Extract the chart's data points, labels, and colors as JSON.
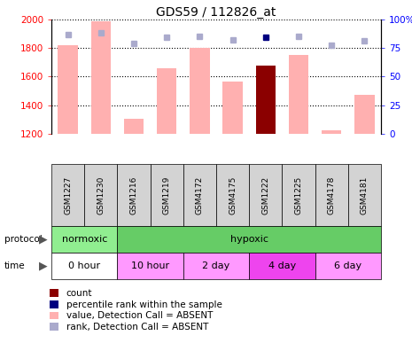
{
  "title": "GDS59 / 112826_at",
  "samples": [
    "GSM1227",
    "GSM1230",
    "GSM1216",
    "GSM1219",
    "GSM4172",
    "GSM4175",
    "GSM1222",
    "GSM1225",
    "GSM4178",
    "GSM4181"
  ],
  "values_absent": [
    1820,
    1990,
    1305,
    1660,
    1800,
    1565,
    null,
    1755,
    1225,
    1475
  ],
  "ranks_absent": [
    87.0,
    88.0,
    78.8,
    84.4,
    85.3,
    81.9,
    null,
    85.0,
    77.5,
    81.3
  ],
  "count_value": [
    null,
    null,
    null,
    null,
    null,
    null,
    1675,
    null,
    null,
    null
  ],
  "rank_present": [
    null,
    null,
    null,
    null,
    null,
    null,
    84.8,
    null,
    null,
    null
  ],
  "ylim": [
    1200,
    2000
  ],
  "y2lim": [
    0,
    100
  ],
  "yticks": [
    1200,
    1400,
    1600,
    1800,
    2000
  ],
  "y2ticks": [
    0,
    25,
    50,
    75,
    100
  ],
  "bar_absent_color": "#FFB0B0",
  "bar_count_color": "#8B0000",
  "rank_absent_color": "#AAAACC",
  "rank_present_color": "#000080",
  "sample_box_color": "#D3D3D3",
  "protocol_groups": [
    {
      "label": "normoxic",
      "start": 0,
      "end": 1,
      "color": "#90EE90"
    },
    {
      "label": "hypoxic",
      "start": 2,
      "end": 9,
      "color": "#66CC66"
    }
  ],
  "time_groups": [
    {
      "label": "0 hour",
      "start": 0,
      "end": 1,
      "color": "#FFFFFF"
    },
    {
      "label": "10 hour",
      "start": 2,
      "end": 3,
      "color": "#FF99FF"
    },
    {
      "label": "2 day",
      "start": 4,
      "end": 5,
      "color": "#FF99FF"
    },
    {
      "label": "4 day",
      "start": 6,
      "end": 7,
      "color": "#EE44EE"
    },
    {
      "label": "6 day",
      "start": 8,
      "end": 9,
      "color": "#FF99FF"
    }
  ],
  "legend_items": [
    {
      "label": "count",
      "color": "#8B0000"
    },
    {
      "label": "percentile rank within the sample",
      "color": "#000080"
    },
    {
      "label": "value, Detection Call = ABSENT",
      "color": "#FFB0B0"
    },
    {
      "label": "rank, Detection Call = ABSENT",
      "color": "#AAAACC"
    }
  ]
}
